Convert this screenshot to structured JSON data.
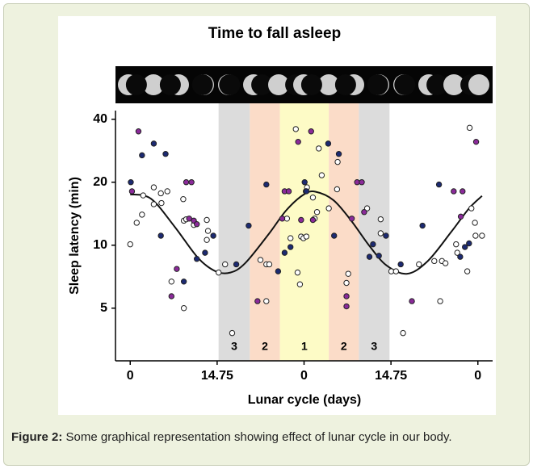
{
  "chart_data": {
    "type": "scatter",
    "title": "Time to fall asleep",
    "xlabel": "Lunar cycle (days)",
    "ylabel": "Sleep latency (min)",
    "xlim": [
      -32,
      32
    ],
    "ylim": [
      2.8,
      44
    ],
    "yscale": "log",
    "xticks": [
      {
        "value": -29.5,
        "label": "0"
      },
      {
        "value": -14.75,
        "label": "14.75"
      },
      0,
      14.75,
      {
        "value": 29.5,
        "label": "0"
      }
    ],
    "yticks": [
      5,
      10,
      20,
      40
    ],
    "bands": [
      {
        "x": [
          -14.5,
          -9.2
        ],
        "label": "3",
        "color": "#dcdcdc"
      },
      {
        "x": [
          -9.2,
          -4.1
        ],
        "label": "2",
        "color": "#fbdcc8"
      },
      {
        "x": [
          -4.1,
          4.2
        ],
        "label": "1",
        "color": "#fdfbc6"
      },
      {
        "x": [
          4.2,
          9.3
        ],
        "label": "2",
        "color": "#fbdcc8"
      },
      {
        "x": [
          9.3,
          14.5
        ],
        "label": "3",
        "color": "#dcdcdc"
      }
    ],
    "series": [
      {
        "color": "#ffffff",
        "x": [
          -29.5,
          -28.4,
          -27.5,
          -27.3,
          -25.5,
          -25.5,
          -24.3,
          -23.2,
          -24.2,
          -20.5,
          -20.4,
          -20,
          -22.5,
          -20.4,
          -18.7,
          -16.5,
          -16.3,
          -16.5,
          -14.5,
          -13.4,
          -12.2,
          -7.4,
          -6.4,
          -5.9,
          -6.4,
          -2.9,
          -2.3,
          -1.4,
          -1.1,
          -0.7,
          -0.5,
          -0.1,
          0.4,
          0.5,
          1.5,
          1.8,
          2.2,
          2.5,
          3,
          4.2,
          5.6,
          5.7,
          7.5,
          7.2,
          10.7,
          13,
          13,
          14.8,
          15.6,
          16.8,
          19.5,
          22.1,
          23.4,
          23.1,
          24,
          26,
          25.8,
          27.7,
          28.1,
          29,
          29.1,
          30.2,
          28.4
        ],
        "values": [
          10.1,
          12.8,
          14.0,
          17.3,
          18.9,
          15.7,
          17.7,
          18.1,
          15.9,
          16.6,
          13.1,
          13.3,
          6.7,
          5.0,
          12.5,
          13.2,
          11.7,
          10.6,
          7.4,
          8.1,
          3.8,
          8.5,
          8.1,
          8.1,
          5.4,
          13.4,
          10.8,
          35.9,
          7.4,
          6.5,
          11.0,
          10.8,
          11.0,
          18.9,
          16.9,
          13.4,
          14.4,
          29.0,
          21.6,
          15.0,
          18.5,
          25.0,
          7.3,
          6.6,
          15.0,
          13.3,
          11.4,
          7.5,
          7.5,
          3.8,
          8.1,
          8.4,
          8.4,
          5.4,
          8.2,
          9.2,
          10.1,
          7.5,
          36.4,
          12.8,
          11.1,
          11.1,
          15.0
        ]
      },
      {
        "color": "#8b2a9a",
        "x": [
          -28.1,
          -29.2,
          -20,
          -19.1,
          -19.5,
          -18.7,
          -21.6,
          -22.5,
          -18.2,
          -7.9,
          -3.7,
          -3.3,
          -2.6,
          -1,
          0.3,
          1.2,
          -0.5,
          1.5,
          8.1,
          7.2,
          7.2,
          9,
          9.8,
          10.2,
          18.3,
          25.4,
          26.9,
          26.6,
          29.2
        ],
        "values": [
          35,
          18.1,
          20,
          20,
          13.4,
          13.1,
          7.7,
          5.7,
          12.6,
          5.4,
          13.4,
          18.1,
          18.1,
          31.2,
          18.1,
          35,
          13.2,
          13.2,
          13.4,
          5.7,
          5.1,
          20,
          20,
          14.4,
          5.4,
          18.1,
          18.1,
          13.7,
          31.2
        ]
      },
      {
        "color": "#1c2a72",
        "x": [
          -29.4,
          -27.5,
          -25.5,
          -23.5,
          -24.3,
          -20.4,
          -18.2,
          -15.4,
          -16.8,
          -11.5,
          -9.4,
          -6.4,
          -4.4,
          -3.3,
          -2.3,
          0.1,
          0.4,
          4.1,
          5.9,
          5.1,
          11.1,
          11.7,
          13.9,
          12.7,
          16.4,
          20.1,
          22.9,
          26.5,
          27.3,
          28
        ],
        "values": [
          20,
          26.9,
          30.6,
          27.3,
          11.1,
          6.7,
          8.6,
          11.1,
          9.2,
          8.1,
          12.4,
          19.5,
          7.5,
          9.2,
          9.8,
          20,
          18.1,
          30.6,
          27.3,
          11.1,
          8.8,
          10.1,
          11.1,
          8.9,
          8.1,
          12.4,
          19.5,
          8.8,
          9.8,
          10.2
        ]
      }
    ],
    "fit": {
      "color": "#111111",
      "x": [
        -29.5,
        -26,
        -22,
        -18,
        -15,
        -12.5,
        -10,
        -6,
        -3,
        0,
        2,
        5,
        8,
        11,
        14,
        17.5,
        21,
        25,
        28,
        30.2
      ],
      "values": [
        17.5,
        16.7,
        12.3,
        8.7,
        7.5,
        7.4,
        8.2,
        11.3,
        14.7,
        17.5,
        18.0,
        16.4,
        13.1,
        10.0,
        8.0,
        7.3,
        8.4,
        11.6,
        15.0,
        17.2
      ]
    }
  },
  "caption": {
    "label": "Figure 2:",
    "text": "Some graphical representation showing effect of lunar cycle in our body."
  }
}
